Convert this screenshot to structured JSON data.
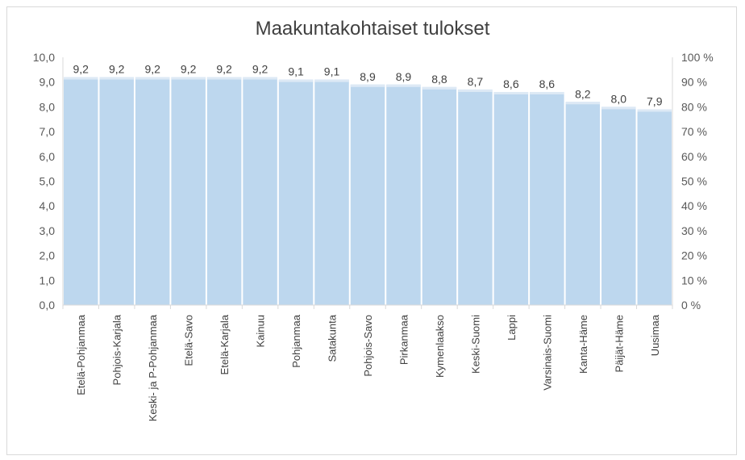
{
  "chart_data": {
    "type": "bar",
    "title": "Maakuntakohtaiset tulokset",
    "categories": [
      "Etelä-Pohjanmaa",
      "Pohjois-Karjala",
      "Keski- ja P-Pohjanmaa",
      "Etelä-Savo",
      "Etelä-Karjala",
      "Kainuu",
      "Pohjanmaa",
      "Satakunta",
      "Pohjois-Savo",
      "Pirkanmaa",
      "Kymenlaakso",
      "Keski-Suomi",
      "Lappi",
      "Varsinais-Suomi",
      "Kanta-Häme",
      "Päijät-Häme",
      "Uusimaa"
    ],
    "values": [
      9.2,
      9.2,
      9.2,
      9.2,
      9.2,
      9.2,
      9.1,
      9.1,
      8.9,
      8.9,
      8.8,
      8.7,
      8.6,
      8.6,
      8.2,
      8.0,
      7.9
    ],
    "data_labels": [
      "9,2",
      "9,2",
      "9,2",
      "9,2",
      "9,2",
      "9,2",
      "9,1",
      "9,1",
      "8,9",
      "8,9",
      "8,8",
      "8,7",
      "8,6",
      "8,6",
      "8,2",
      "8,0",
      "7,9"
    ],
    "ylim": [
      0,
      10
    ],
    "y_ticks": [
      "0,0",
      "1,0",
      "2,0",
      "3,0",
      "4,0",
      "5,0",
      "6,0",
      "7,0",
      "8,0",
      "9,0",
      "10,0"
    ],
    "y2lim": [
      0,
      100
    ],
    "y2_ticks": [
      "0 %",
      "10 %",
      "20 %",
      "30 %",
      "40 %",
      "50 %",
      "60 %",
      "70 %",
      "80 %",
      "90 %",
      "100 %"
    ],
    "grid": false,
    "legend": "none",
    "colors": {
      "bar": "#bdd7ee",
      "bar_edge": "#dde9f5",
      "axis": "#d9d9d9"
    }
  }
}
